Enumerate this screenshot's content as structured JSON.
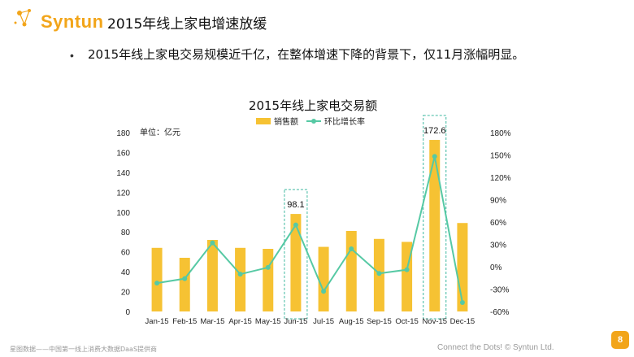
{
  "header": {
    "logo_text": "Syntun",
    "title": "2015年线上家电增速放缓"
  },
  "bullet": {
    "text": "2015年线上家电交易规模近千亿，在整体增速下降的背景下，仅11月涨幅明显。"
  },
  "footer": {
    "left": "星图数据——中国第一线上消费大数据DaaS提供商",
    "right": "Connect the Dots!  © Syntun Ltd.",
    "page_number": "8"
  },
  "colors": {
    "bar": "#f6c233",
    "line": "#56c9a4",
    "highlight_box": "#3fb8a0",
    "brand": "#f2a51a"
  },
  "chart_data": {
    "type": "bar+line",
    "title": "2015年线上家电交易额",
    "unit_label": "单位：亿元",
    "categories": [
      "Jan-15",
      "Feb-15",
      "Mar-15",
      "Apr-15",
      "May-15",
      "Jun-15",
      "Jul-15",
      "Aug-15",
      "Sep-15",
      "Oct-15",
      "Nov-15",
      "Dec-15"
    ],
    "series": [
      {
        "name": "销售额",
        "type": "bar",
        "axis": "left",
        "values": [
          64,
          54,
          72,
          64,
          63,
          98.1,
          65,
          81,
          73,
          70,
          172.6,
          89
        ]
      },
      {
        "name": "环比增长率",
        "type": "line",
        "axis": "right",
        "values": [
          -0.22,
          -0.16,
          0.32,
          -0.1,
          -0.01,
          0.56,
          -0.33,
          0.24,
          -0.09,
          -0.04,
          1.48,
          -0.48
        ]
      }
    ],
    "left_axis": {
      "min": 0,
      "max": 180,
      "ticks": [
        "0",
        "20",
        "40",
        "60",
        "80",
        "100",
        "120",
        "140",
        "160",
        "180"
      ]
    },
    "right_axis": {
      "min": -0.6,
      "max": 1.8,
      "ticks": [
        "-60%",
        "-30%",
        "0%",
        "30%",
        "60%",
        "90%",
        "120%",
        "150%",
        "180%"
      ]
    },
    "data_labels": [
      {
        "index": 5,
        "text": "98.1"
      },
      {
        "index": 10,
        "text": "172.6"
      }
    ],
    "highlighted_indices": [
      5,
      10
    ],
    "legend_position": "top-center",
    "grid": false
  }
}
